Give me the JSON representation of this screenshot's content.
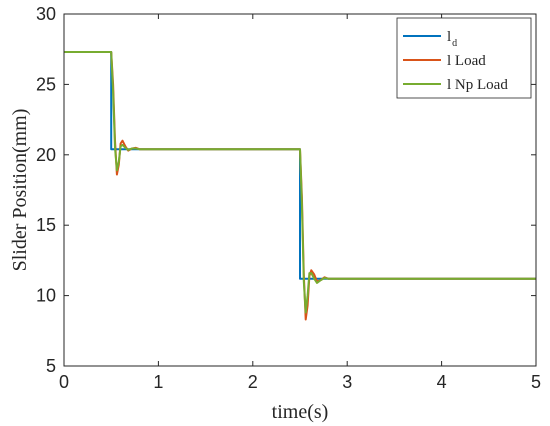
{
  "chart_data": {
    "type": "line",
    "xlabel": "time(s)",
    "ylabel": "Slider Position(mm)",
    "xlim": [
      0,
      5
    ],
    "ylim": [
      5,
      30
    ],
    "xticks": [
      "0",
      "1",
      "2",
      "3",
      "4",
      "5"
    ],
    "yticks": [
      "5",
      "10",
      "15",
      "20",
      "25",
      "30"
    ],
    "grid": false,
    "legend_position": "top-right",
    "series": [
      {
        "name": "l_d",
        "legend_main": "l",
        "legend_sub": "d",
        "color": "#0072bd",
        "x": [
          0,
          0.5,
          0.5,
          2.5,
          2.5,
          5
        ],
        "y": [
          27.3,
          27.3,
          20.4,
          20.4,
          11.2,
          11.2
        ]
      },
      {
        "name": "l  Load",
        "legend_main": "l  Load",
        "legend_sub": "",
        "color": "#d95319",
        "x": [
          0,
          0.5,
          0.52,
          0.54,
          0.56,
          0.58,
          0.6,
          0.62,
          0.65,
          0.68,
          0.72,
          0.76,
          0.8,
          0.9,
          1.0,
          2.5,
          2.52,
          2.54,
          2.56,
          2.58,
          2.6,
          2.62,
          2.65,
          2.68,
          2.72,
          2.76,
          2.8,
          2.9,
          3.0,
          5
        ],
        "y": [
          27.3,
          27.3,
          25.0,
          21.0,
          18.6,
          19.3,
          20.8,
          21.0,
          20.6,
          20.3,
          20.45,
          20.5,
          20.4,
          20.4,
          20.4,
          20.4,
          17.0,
          11.5,
          8.3,
          9.3,
          11.4,
          11.8,
          11.5,
          11.0,
          11.1,
          11.3,
          11.2,
          11.2,
          11.2,
          11.2
        ]
      },
      {
        "name": "l  Np Load",
        "legend_main": "l  Np Load",
        "legend_sub": "",
        "color": "#77ac30",
        "x": [
          0,
          0.5,
          0.52,
          0.54,
          0.56,
          0.58,
          0.6,
          0.62,
          0.65,
          0.68,
          0.72,
          0.76,
          0.8,
          0.9,
          1.0,
          2.5,
          2.52,
          2.54,
          2.56,
          2.58,
          2.6,
          2.62,
          2.65,
          2.68,
          2.72,
          2.76,
          2.8,
          2.9,
          3.0,
          5
        ],
        "y": [
          27.3,
          27.3,
          24.5,
          20.5,
          18.9,
          19.5,
          20.6,
          20.7,
          20.5,
          20.35,
          20.45,
          20.45,
          20.4,
          20.4,
          20.4,
          20.4,
          16.5,
          11.0,
          8.8,
          10.0,
          11.6,
          11.6,
          11.2,
          10.9,
          11.1,
          11.25,
          11.2,
          11.2,
          11.2,
          11.2
        ]
      }
    ]
  }
}
